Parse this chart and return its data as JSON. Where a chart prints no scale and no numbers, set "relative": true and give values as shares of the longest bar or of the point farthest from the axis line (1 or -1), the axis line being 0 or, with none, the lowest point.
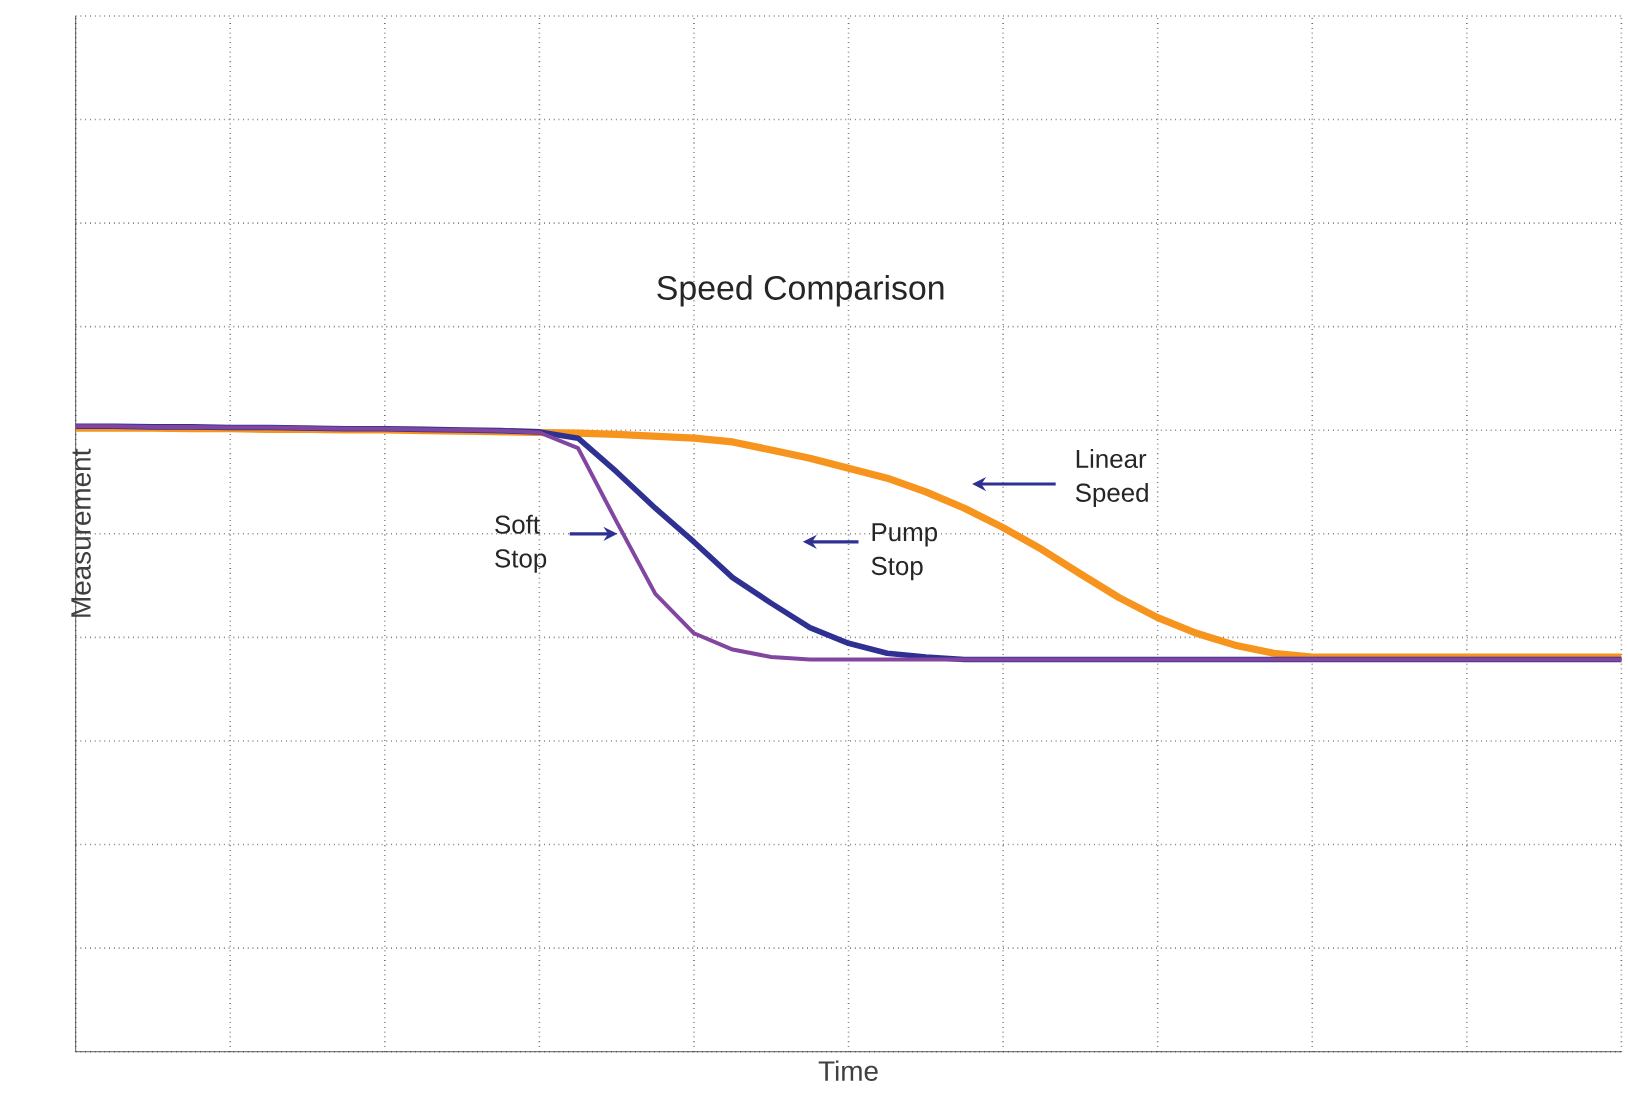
{
  "chart_data": {
    "type": "line",
    "title": "Speed Comparison",
    "xlabel": "Time",
    "ylabel": "Measurement",
    "relative": true,
    "grid": true,
    "categories": [
      null,
      null,
      null,
      null,
      null,
      null,
      null,
      null,
      null,
      null,
      null,
      null,
      null,
      null,
      null,
      null,
      null,
      null,
      null,
      null,
      null,
      null,
      null,
      null,
      null,
      null,
      null,
      null,
      null,
      null,
      null,
      null,
      null,
      null,
      null,
      null,
      null,
      null,
      null,
      null,
      null
    ],
    "series": [
      {
        "color": "#f7941d",
        "values": [
          0.997,
          0.997,
          0.997,
          0.996,
          0.996,
          0.995,
          0.995,
          0.994,
          0.994,
          0.993,
          0.992,
          0.991,
          0.99,
          0.989,
          0.987,
          0.984,
          0.981,
          0.975,
          0.962,
          0.949,
          0.933,
          0.917,
          0.895,
          0.869,
          0.838,
          0.803,
          0.764,
          0.726,
          0.694,
          0.669,
          0.65,
          0.637,
          0.631,
          0.631,
          0.631,
          0.631,
          0.631,
          0.631,
          0.631,
          0.631,
          0.631
        ]
      },
      {
        "color": "#2e3192",
        "values": [
          1.0,
          1.0,
          0.999,
          0.999,
          0.998,
          0.998,
          0.997,
          0.996,
          0.996,
          0.995,
          0.994,
          0.993,
          0.991,
          0.981,
          0.927,
          0.869,
          0.815,
          0.758,
          0.717,
          0.678,
          0.653,
          0.637,
          0.631,
          0.627,
          0.627,
          0.627,
          0.627,
          0.627,
          0.627,
          0.627,
          0.627,
          0.627,
          0.627,
          0.627,
          0.627,
          0.627,
          0.627,
          0.627,
          0.627,
          0.627,
          0.627
        ]
      },
      {
        "color": "#8246a0",
        "values": [
          1.0,
          1.0,
          0.999,
          0.999,
          0.998,
          0.998,
          0.997,
          0.996,
          0.996,
          0.995,
          0.994,
          0.993,
          0.99,
          0.965,
          0.847,
          0.732,
          0.669,
          0.643,
          0.631,
          0.627,
          0.627,
          0.627,
          0.627,
          0.627,
          0.627,
          0.627,
          0.627,
          0.627,
          0.627,
          0.627,
          0.627,
          0.627,
          0.627,
          0.627,
          0.627,
          0.627,
          0.627,
          0.627,
          0.627,
          0.627,
          0.627
        ]
      }
    ],
    "annotations": [
      "Linear Speed",
      "Pump Stop",
      "Soft Stop"
    ]
  }
}
